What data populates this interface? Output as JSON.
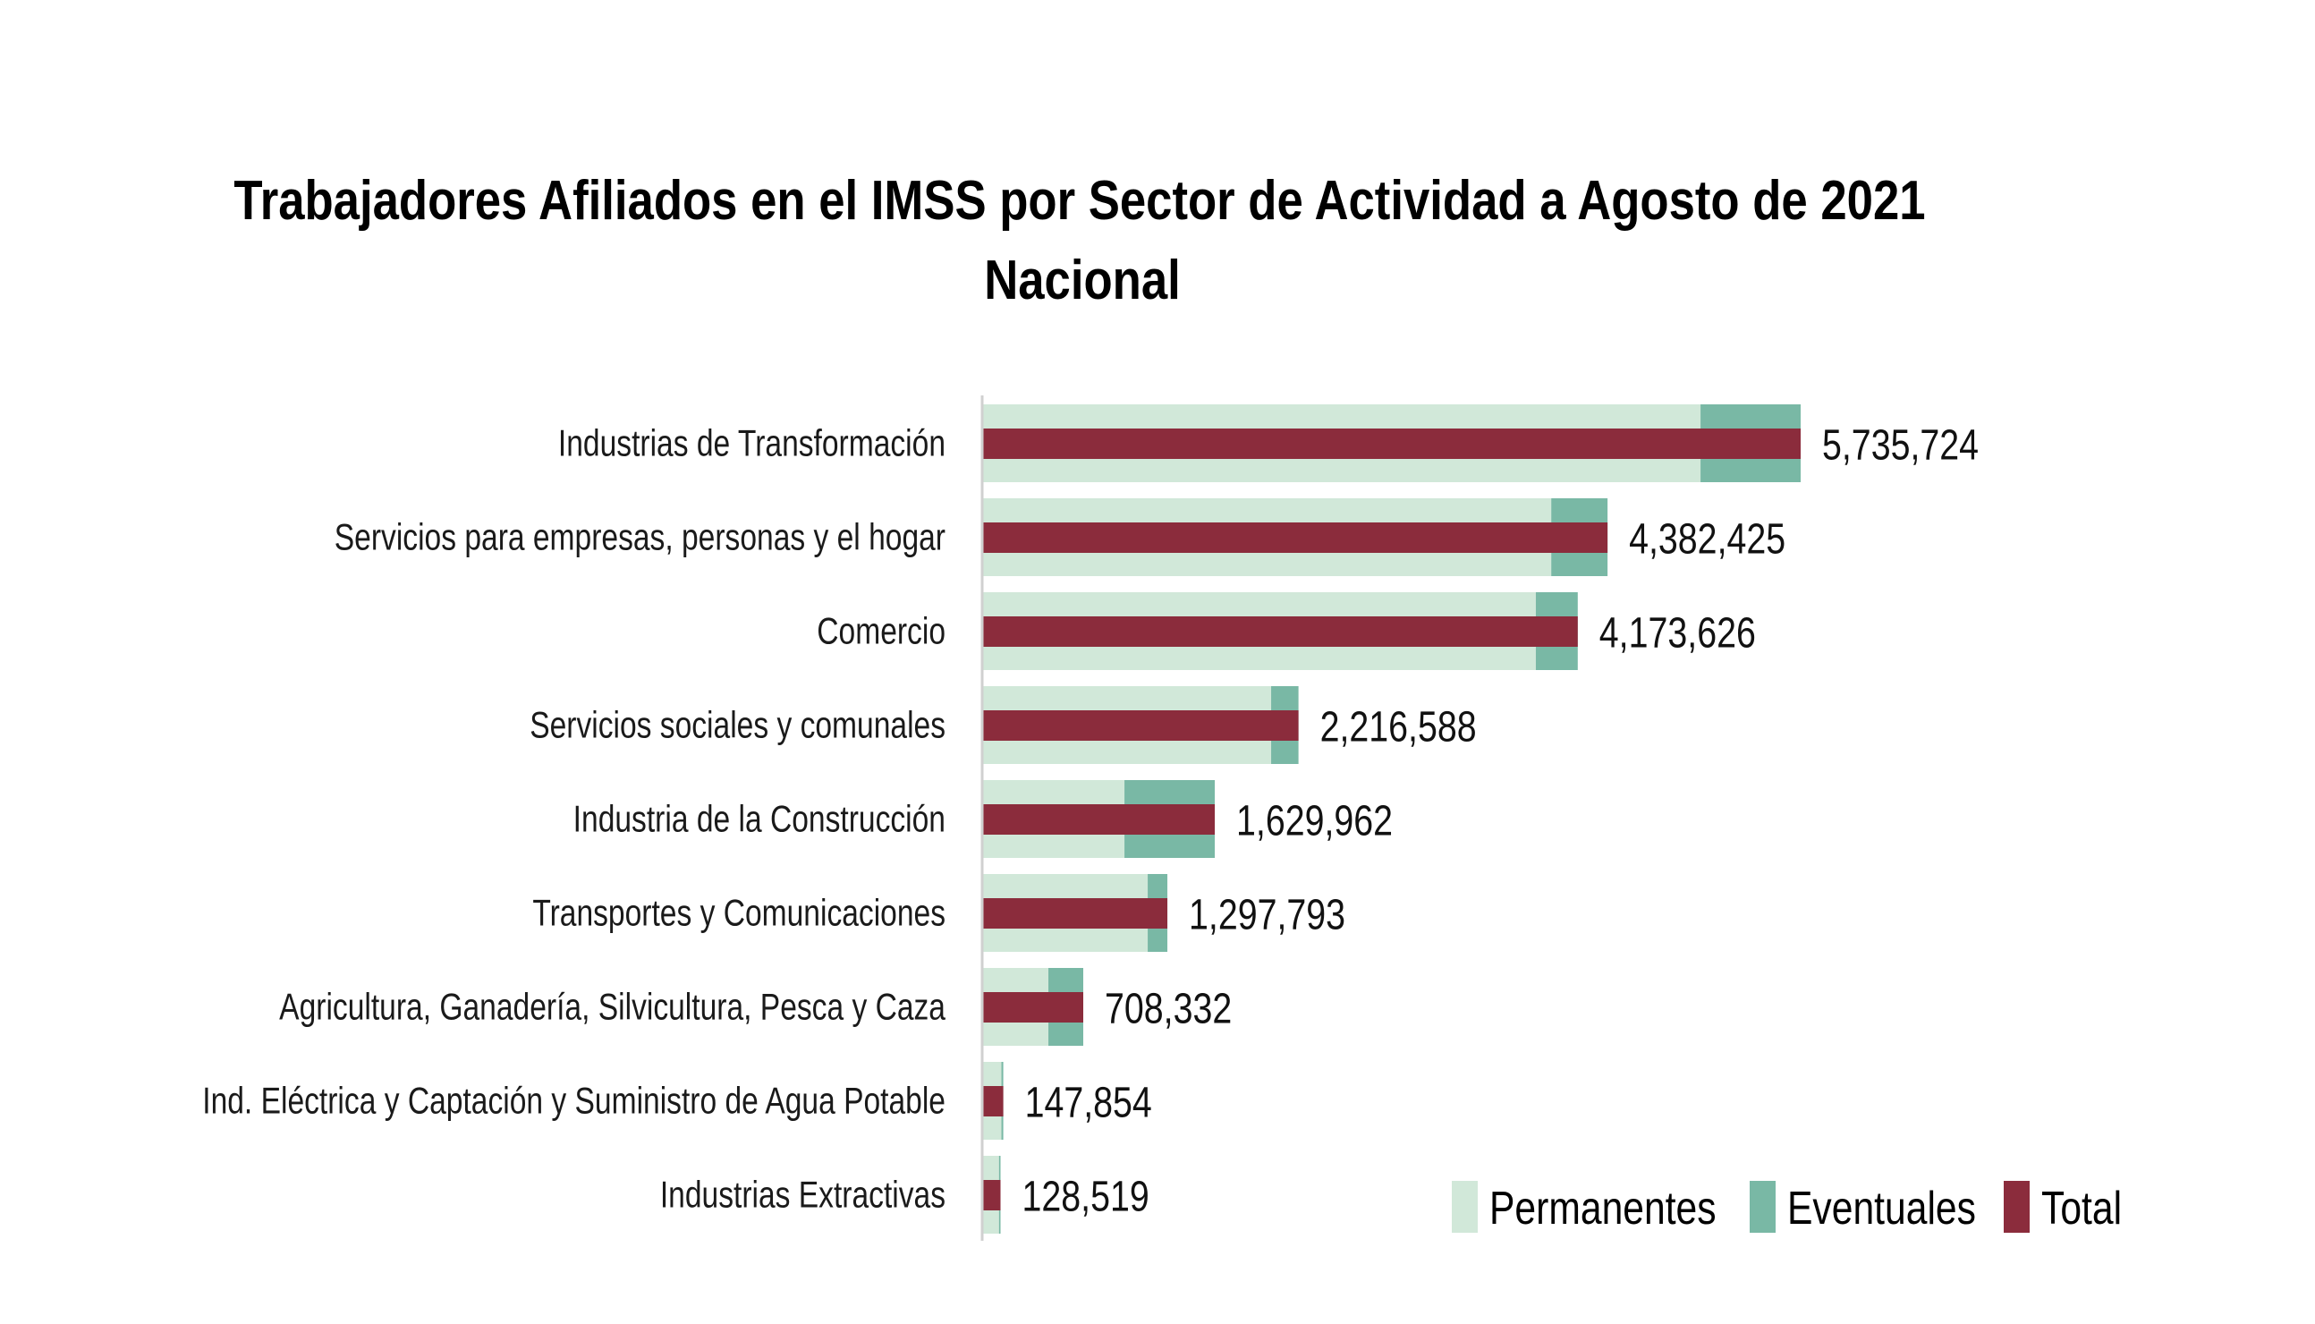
{
  "chart_data": {
    "type": "bar",
    "orientation": "horizontal",
    "title": "Trabajadores Afiliados en el IMSS por Sector de Actividad a Agosto de 2021",
    "subtitle": "Nacional",
    "xlabel": "",
    "ylabel": "",
    "grid": false,
    "legend_position": "bottom-right",
    "categories": [
      "Industrias de Transformación",
      "Servicios para empresas, personas y el hogar",
      "Comercio",
      "Servicios sociales y comunales",
      "Industria de la Construcción",
      "Transportes y Comunicaciones",
      "Agricultura, Ganadería, Silvicultura, Pesca y Caza",
      "Ind. Eléctrica y Captación y Suministro de Agua Potable",
      "Industrias Extractivas"
    ],
    "series": [
      {
        "name": "Permanentes",
        "color": "#D1E8D9",
        "values": [
          5034000,
          3988000,
          3880000,
          2025000,
          997000,
          1160000,
          464000,
          135000,
          118000
        ]
      },
      {
        "name": "Eventuales",
        "color": "#79B8A5",
        "values": [
          701724,
          394425,
          293626,
          191588,
          632962,
          137793,
          244332,
          12854,
          10519
        ]
      },
      {
        "name": "Total",
        "color": "#8B2C3C",
        "values": [
          5735724,
          4382425,
          4173626,
          2216588,
          1629962,
          1297793,
          708332,
          147854,
          128519
        ]
      }
    ],
    "data_labels": [
      "5,735,724",
      "4,382,425",
      "4,173,626",
      "2,216,588",
      "1,629,962",
      "1,297,793",
      "708,332",
      "147,854",
      "128,519"
    ],
    "xlim": [
      0,
      5735724
    ]
  }
}
